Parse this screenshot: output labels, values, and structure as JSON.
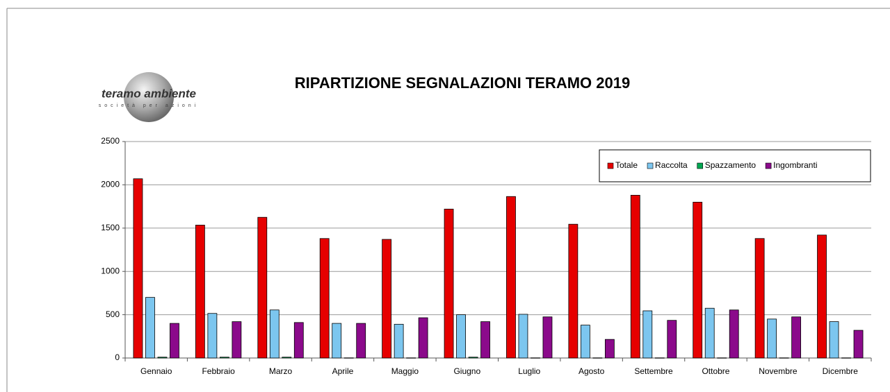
{
  "logo": {
    "name": "teramo ambiente",
    "tagline": "società per azioni"
  },
  "chart_data": {
    "type": "bar",
    "title": "RIPARTIZIONE SEGNALAZIONI TERAMO 2019",
    "categories": [
      "Gennaio",
      "Febbraio",
      "Marzo",
      "Aprile",
      "Maggio",
      "Giugno",
      "Luglio",
      "Agosto",
      "Settembre",
      "Ottobre",
      "Novembre",
      "Dicembre"
    ],
    "series": [
      {
        "name": "Totale",
        "color": "#e60000",
        "values": [
          2070,
          1535,
          1625,
          1380,
          1370,
          1720,
          1865,
          1545,
          1880,
          1800,
          1380,
          1420
        ]
      },
      {
        "name": "Raccolta",
        "color": "#7cc6ef",
        "values": [
          700,
          515,
          555,
          400,
          390,
          500,
          505,
          380,
          545,
          575,
          450,
          420
        ]
      },
      {
        "name": "Spazzamento",
        "color": "#00a651",
        "values": [
          10,
          10,
          10,
          2,
          2,
          10,
          2,
          2,
          2,
          2,
          2,
          2
        ]
      },
      {
        "name": "Ingombranti",
        "color": "#8b0a8b",
        "values": [
          400,
          420,
          410,
          400,
          465,
          420,
          475,
          215,
          435,
          555,
          475,
          320
        ]
      }
    ],
    "ylim": [
      0,
      2500
    ],
    "yticks": [
      0,
      500,
      1000,
      1500,
      2000,
      2500
    ],
    "grid": true,
    "legend": "top-right"
  }
}
